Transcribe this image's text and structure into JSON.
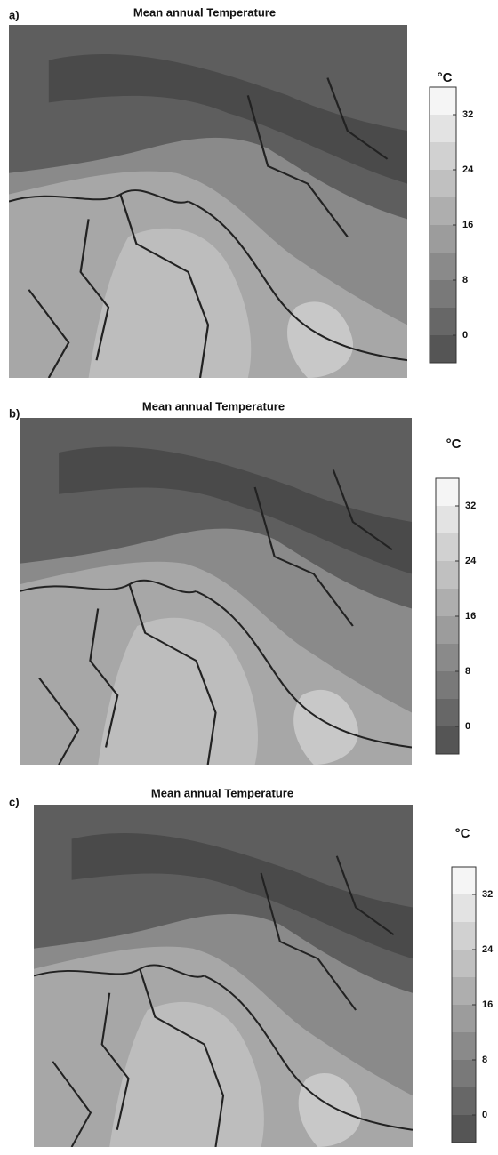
{
  "panels": [
    {
      "label": "a)",
      "title": "Mean annual Temperature",
      "unit": "°C",
      "colorbar": {
        "lim": [
          -4,
          36
        ],
        "ticks": [
          0,
          8,
          16,
          24,
          32
        ]
      }
    },
    {
      "label": "b)",
      "title": "Mean annual Temperature",
      "unit": "°C",
      "colorbar": {
        "lim": [
          -4,
          36
        ],
        "ticks": [
          0,
          8,
          16,
          24,
          32
        ]
      }
    },
    {
      "label": "c)",
      "title": "Mean annual Temperature",
      "unit": "°C",
      "colorbar": {
        "lim": [
          -4,
          36
        ],
        "ticks": [
          0,
          8,
          16,
          24,
          32
        ]
      }
    }
  ]
}
